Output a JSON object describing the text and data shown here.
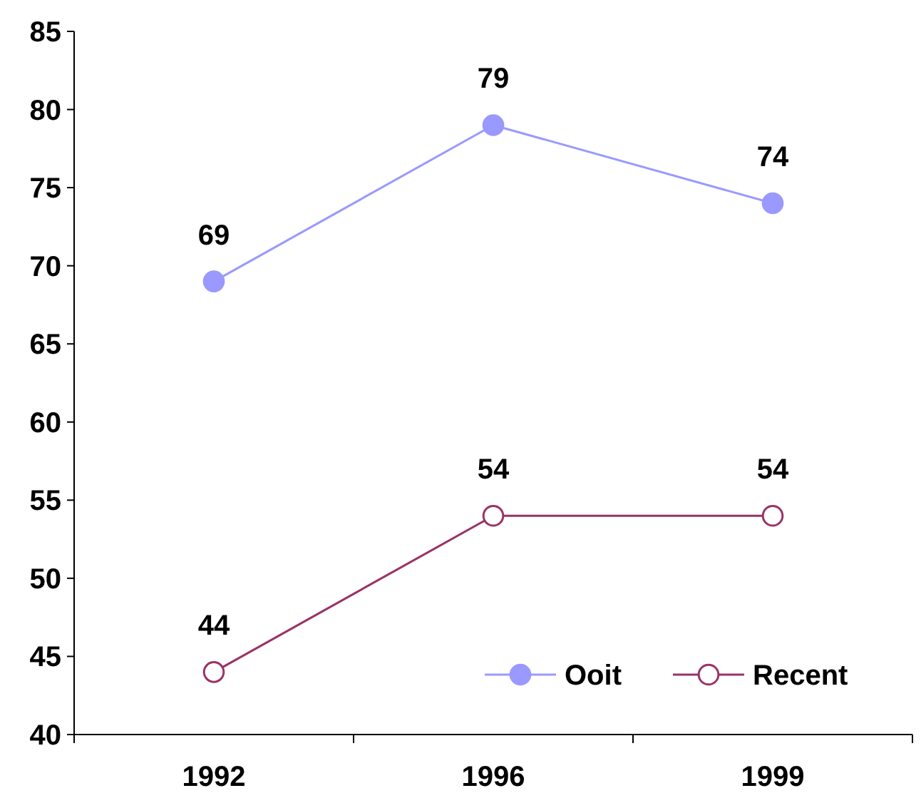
{
  "chart_data": {
    "type": "line",
    "categories": [
      "1992",
      "1996",
      "1999"
    ],
    "series": [
      {
        "name": "Ooit",
        "color": "#9999ff",
        "values": [
          69,
          79,
          74
        ]
      },
      {
        "name": "Recent",
        "color": "#993366",
        "values": [
          44,
          54,
          54
        ]
      }
    ],
    "ylim": [
      40,
      85
    ],
    "yticks": [
      40,
      45,
      50,
      55,
      60,
      65,
      70,
      75,
      80,
      85
    ],
    "grid": false,
    "legend": "bottom right",
    "marker": "circle",
    "data_labels": true
  }
}
